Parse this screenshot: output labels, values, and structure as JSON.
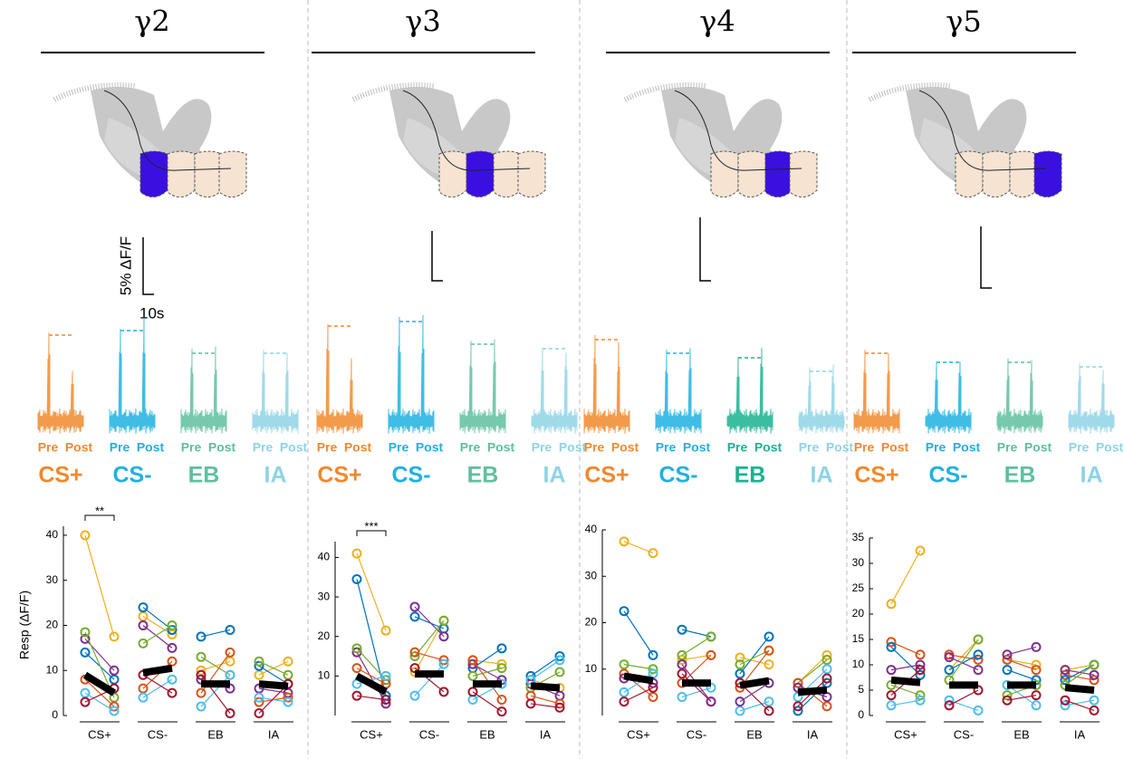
{
  "chart_data": [
    {
      "type": "paired",
      "title": "γ2",
      "ylabel": "Resp (ΔF/F)",
      "scale_bar": {
        "y_label": "5% ΔF/F",
        "x_label": "10s"
      },
      "categories": [
        "CS+",
        "CS-",
        "EB",
        "IA"
      ],
      "conditions": [
        "Pre",
        "Post"
      ],
      "category_colors": [
        "#f0892d",
        "#1fb2e0",
        "#5fbfa0",
        "#8fd3e5"
      ],
      "ylim": [
        0,
        42
      ],
      "yticks": [
        0,
        10,
        20,
        30,
        40
      ],
      "mean": {
        "pre": [
          9,
          9.5,
          7,
          7
        ],
        "post": [
          5,
          10.5,
          7,
          6.5
        ]
      },
      "significance": [
        {
          "category": "CS+",
          "label": "**"
        }
      ],
      "subjects": [
        {
          "color": "#edb120",
          "values": [
            [
              40,
              17.5
            ],
            [
              22,
              18
            ],
            [
              10,
              12
            ],
            [
              9,
              12
            ]
          ]
        },
        {
          "color": "#0072bd",
          "values": [
            [
              14,
              8
            ],
            [
              24,
              19
            ],
            [
              17.5,
              19
            ],
            [
              11,
              7
            ]
          ]
        },
        {
          "color": "#7e2f8e",
          "values": [
            [
              17,
              10
            ],
            [
              20,
              15
            ],
            [
              8,
              6
            ],
            [
              6,
              5
            ]
          ]
        },
        {
          "color": "#77ac30",
          "values": [
            [
              18.5,
              4
            ],
            [
              16,
              20
            ],
            [
              13,
              9
            ],
            [
              12,
              9
            ]
          ]
        },
        {
          "color": "#d95319",
          "values": [
            [
              8,
              2
            ],
            [
              6,
              12
            ],
            [
              5,
              14
            ],
            [
              3,
              4
            ]
          ]
        },
        {
          "color": "#4dbeee",
          "values": [
            [
              5,
              1
            ],
            [
              4,
              8
            ],
            [
              2,
              9
            ],
            [
              4,
              3
            ]
          ]
        },
        {
          "color": "#a2142f",
          "values": [
            [
              3,
              6
            ],
            [
              9,
              5
            ],
            [
              9,
              0.5
            ],
            [
              0.5,
              7
            ]
          ]
        }
      ]
    },
    {
      "type": "paired",
      "title": "γ3",
      "categories": [
        "CS+",
        "CS-",
        "EB",
        "IA"
      ],
      "conditions": [
        "Pre",
        "Post"
      ],
      "category_colors": [
        "#f0892d",
        "#1fb2e0",
        "#5fbfa0",
        "#8fd3e5"
      ],
      "ylim": [
        0,
        44
      ],
      "yticks": [
        10,
        20,
        30,
        40
      ],
      "mean": {
        "pre": [
          10,
          10.5,
          8,
          7.5
        ],
        "post": [
          6,
          10.5,
          8,
          7
        ]
      },
      "significance": [
        {
          "category": "CS+",
          "label": "***"
        }
      ],
      "subjects": [
        {
          "color": "#edb120",
          "values": [
            [
              41,
              21.5
            ],
            [
              11,
              24
            ],
            [
              14,
              13
            ],
            [
              9,
              7
            ]
          ]
        },
        {
          "color": "#0072bd",
          "values": [
            [
              34.5,
              5
            ],
            [
              25,
              22
            ],
            [
              12,
              17
            ],
            [
              10,
              15
            ]
          ]
        },
        {
          "color": "#7e2f8e",
          "values": [
            [
              16,
              3
            ],
            [
              27.5,
              20
            ],
            [
              13,
              9
            ],
            [
              8,
              5
            ]
          ]
        },
        {
          "color": "#77ac30",
          "values": [
            [
              17,
              9
            ],
            [
              15,
              24
            ],
            [
              10,
              12
            ],
            [
              7,
              11
            ]
          ]
        },
        {
          "color": "#d95319",
          "values": [
            [
              12,
              8
            ],
            [
              16,
              14
            ],
            [
              14,
              4
            ],
            [
              5,
              3
            ]
          ]
        },
        {
          "color": "#4dbeee",
          "values": [
            [
              8,
              10
            ],
            [
              5,
              13
            ],
            [
              4,
              8
            ],
            [
              9,
              14
            ]
          ]
        },
        {
          "color": "#a2142f",
          "values": [
            [
              5,
              4
            ],
            [
              12,
              6
            ],
            [
              6,
              1
            ],
            [
              3,
              2
            ]
          ]
        }
      ]
    },
    {
      "type": "paired",
      "title": "γ4",
      "categories": [
        "CS+",
        "CS-",
        "EB",
        "IA"
      ],
      "conditions": [
        "Pre",
        "Post"
      ],
      "category_colors": [
        "#f0892d",
        "#1fb2e0",
        "#19b38f",
        "#8fd3e5"
      ],
      "ylim": [
        0,
        40
      ],
      "yticks": [
        10,
        20,
        30,
        40
      ],
      "mean": {
        "pre": [
          8.5,
          7,
          6.5,
          5
        ],
        "post": [
          7.5,
          7,
          7.5,
          5.5
        ]
      },
      "subjects": [
        {
          "color": "#edb120",
          "values": [
            [
              37.5,
              35
            ],
            [
              12,
              13
            ],
            [
              12.5,
              11
            ],
            [
              7,
              13
            ]
          ]
        },
        {
          "color": "#0072bd",
          "values": [
            [
              22.5,
              13
            ],
            [
              18.5,
              17
            ],
            [
              9,
              17
            ],
            [
              1,
              7
            ]
          ]
        },
        {
          "color": "#77ac30",
          "values": [
            [
              11,
              10
            ],
            [
              13,
              17
            ],
            [
              11,
              14
            ],
            [
              7,
              12
            ]
          ]
        },
        {
          "color": "#d95319",
          "values": [
            [
              9,
              4
            ],
            [
              7,
              13
            ],
            [
              6,
              14
            ],
            [
              7,
              2
            ]
          ]
        },
        {
          "color": "#4dbeee",
          "values": [
            [
              5,
              9
            ],
            [
              4,
              6
            ],
            [
              1,
              3
            ],
            [
              4,
              10
            ]
          ]
        },
        {
          "color": "#a2142f",
          "values": [
            [
              3,
              6
            ],
            [
              9,
              3
            ],
            [
              7,
              1
            ],
            [
              2,
              8
            ]
          ]
        },
        {
          "color": "#7e2f8e",
          "values": [
            [
              8,
              7
            ],
            [
              11,
              3
            ],
            [
              3,
              7
            ],
            [
              6,
              4
            ]
          ]
        }
      ]
    },
    {
      "type": "paired",
      "title": "γ5",
      "categories": [
        "CS+",
        "CS-",
        "EB",
        "IA"
      ],
      "conditions": [
        "Pre",
        "Post"
      ],
      "category_colors": [
        "#f0892d",
        "#1fb2e0",
        "#5fbfa0",
        "#8fd3e5"
      ],
      "ylim": [
        0,
        35
      ],
      "yticks": [
        0,
        5,
        10,
        15,
        20,
        25,
        30,
        35
      ],
      "mean": {
        "pre": [
          7,
          6,
          6,
          5.5
        ],
        "post": [
          6.5,
          6,
          6,
          5
        ]
      },
      "subjects": [
        {
          "color": "#edb120",
          "values": [
            [
              22,
              32.5
            ],
            [
              9,
              15
            ],
            [
              11,
              10
            ],
            [
              9,
              10
            ]
          ]
        },
        {
          "color": "#d95319",
          "values": [
            [
              14.5,
              12
            ],
            [
              12,
              11
            ],
            [
              11,
              9
            ],
            [
              8,
              7
            ]
          ]
        },
        {
          "color": "#0072bd",
          "values": [
            [
              13.5,
              8
            ],
            [
              9,
              12
            ],
            [
              9,
              7
            ],
            [
              7,
              10
            ]
          ]
        },
        {
          "color": "#7e2f8e",
          "values": [
            [
              9,
              10
            ],
            [
              11.5,
              9
            ],
            [
              12,
              13.5
            ],
            [
              9,
              8
            ]
          ]
        },
        {
          "color": "#77ac30",
          "values": [
            [
              6,
              4
            ],
            [
              7,
              15
            ],
            [
              4,
              6
            ],
            [
              6,
              10
            ]
          ]
        },
        {
          "color": "#4dbeee",
          "values": [
            [
              2,
              3
            ],
            [
              3,
              1
            ],
            [
              6,
              2
            ],
            [
              2,
              3
            ]
          ]
        },
        {
          "color": "#a2142f",
          "values": [
            [
              4,
              9
            ],
            [
              2,
              5
            ],
            [
              3,
              4
            ],
            [
              3,
              1
            ]
          ]
        }
      ]
    }
  ]
}
